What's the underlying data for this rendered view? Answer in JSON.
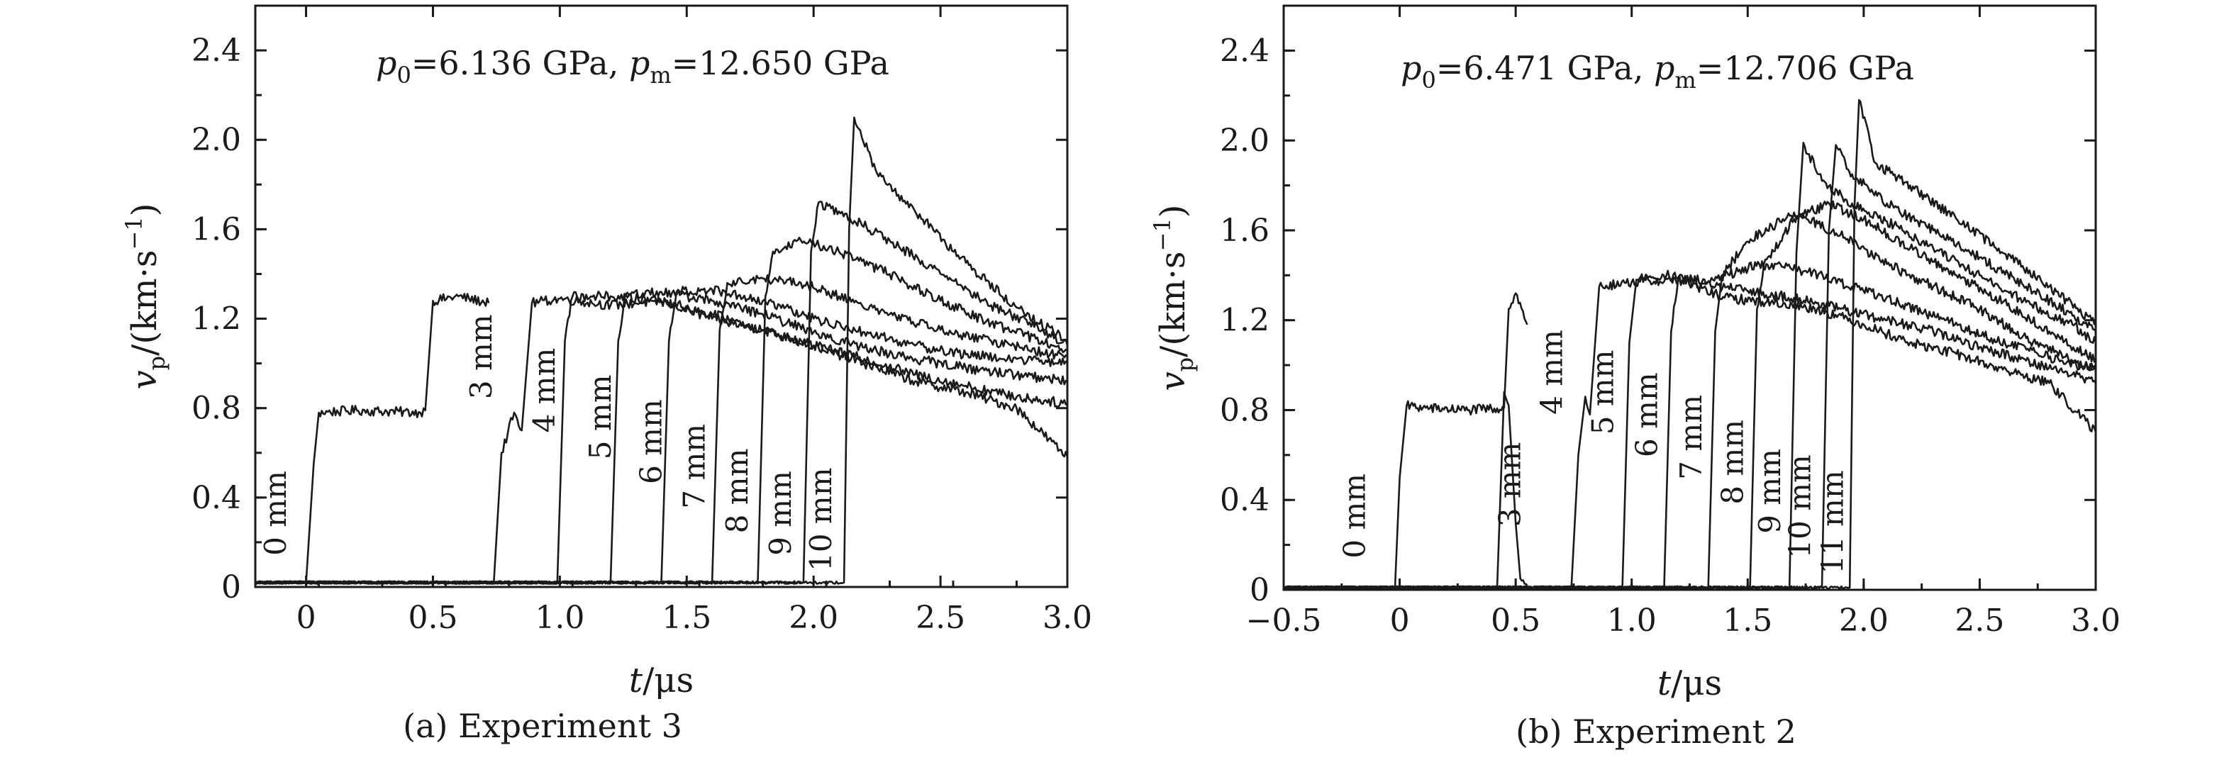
{
  "chart_data": [
    {
      "type": "line",
      "caption": "(a) Experiment 3",
      "annotation": {
        "p0_symbol": "p",
        "p0_sub": "0",
        "p0_value": "=6.136 GPa, ",
        "pm_symbol": "p",
        "pm_sub": "m",
        "pm_value": "=12.650 GPa"
      },
      "xlabel": {
        "symbol": "t",
        "unit": "/μs"
      },
      "ylabel": {
        "symbol": "v",
        "sub": "p",
        "unit_pre": "/(km·s",
        "unit_sup": "−1",
        "unit_post": ")"
      },
      "xlim": [
        -0.2,
        3.0
      ],
      "ylim": [
        0,
        2.6
      ],
      "xticks": [
        0,
        0.5,
        1.0,
        1.5,
        2.0,
        2.5,
        3.0
      ],
      "xtick_labels": [
        "0",
        "0.5",
        "1.0",
        "1.5",
        "2.0",
        "2.5",
        "3.0"
      ],
      "yticks": [
        0,
        0.4,
        0.8,
        1.2,
        1.6,
        2.0,
        2.4
      ],
      "ytick_labels": [
        "0",
        "0.4",
        "0.8",
        "1.2",
        "1.6",
        "2.0",
        "2.4"
      ],
      "grid": false,
      "series": [
        {
          "name": "0 mm",
          "x": [
            -0.2,
            0.0,
            0.03,
            0.05,
            0.2,
            0.45,
            0.47,
            0.5,
            0.6,
            0.72
          ],
          "y": [
            0.02,
            0.02,
            0.55,
            0.78,
            0.79,
            0.78,
            0.79,
            1.28,
            1.3,
            1.27
          ]
        },
        {
          "name": "3 mm",
          "x": [
            -0.2,
            0.74,
            0.77,
            0.82,
            0.85,
            0.89,
            1.0,
            1.2,
            1.4,
            1.6,
            1.8,
            2.0,
            2.2,
            2.4,
            2.6,
            2.8,
            3.0
          ],
          "y": [
            0.02,
            0.02,
            0.6,
            0.78,
            0.7,
            1.27,
            1.29,
            1.26,
            1.28,
            1.2,
            1.15,
            1.08,
            1.0,
            0.92,
            0.87,
            0.8,
            0.58
          ]
        },
        {
          "name": "4 mm",
          "x": [
            -0.2,
            0.99,
            1.02,
            1.05,
            1.2,
            1.4,
            1.6,
            1.8,
            2.0,
            2.2,
            2.4,
            2.6,
            2.8,
            3.0
          ],
          "y": [
            0.02,
            0.02,
            1.1,
            1.3,
            1.3,
            1.28,
            1.22,
            1.15,
            1.08,
            1.02,
            0.95,
            0.9,
            0.85,
            0.82
          ]
        },
        {
          "name": "5 mm",
          "x": [
            -0.2,
            1.2,
            1.23,
            1.26,
            1.4,
            1.6,
            1.8,
            2.0,
            2.2,
            2.4,
            2.6,
            2.8,
            3.0
          ],
          "y": [
            0.02,
            0.02,
            1.1,
            1.31,
            1.32,
            1.28,
            1.22,
            1.14,
            1.07,
            1.02,
            0.98,
            0.95,
            0.92
          ]
        },
        {
          "name": "6 mm",
          "x": [
            -0.2,
            1.4,
            1.43,
            1.46,
            1.6,
            1.8,
            2.0,
            2.2,
            2.4,
            2.6,
            2.8,
            3.0
          ],
          "y": [
            0.02,
            0.02,
            1.1,
            1.32,
            1.33,
            1.28,
            1.2,
            1.14,
            1.08,
            1.04,
            1.02,
            1.0
          ]
        },
        {
          "name": "7 mm",
          "x": [
            -0.2,
            1.6,
            1.63,
            1.66,
            1.8,
            1.95,
            2.1,
            2.3,
            2.5,
            2.7,
            2.9,
            3.0
          ],
          "y": [
            0.02,
            0.02,
            1.15,
            1.36,
            1.38,
            1.36,
            1.3,
            1.22,
            1.15,
            1.1,
            1.05,
            1.03
          ]
        },
        {
          "name": "8 mm",
          "x": [
            -0.2,
            1.78,
            1.81,
            1.84,
            1.95,
            2.1,
            2.3,
            2.5,
            2.7,
            2.9,
            3.0
          ],
          "y": [
            0.02,
            0.02,
            1.3,
            1.5,
            1.55,
            1.5,
            1.4,
            1.28,
            1.18,
            1.1,
            1.06
          ]
        },
        {
          "name": "9 mm",
          "x": [
            -0.2,
            1.96,
            1.99,
            2.02,
            2.1,
            2.3,
            2.5,
            2.7,
            2.9,
            3.0
          ],
          "y": [
            0.02,
            0.02,
            1.5,
            1.72,
            1.68,
            1.55,
            1.4,
            1.26,
            1.15,
            1.08
          ]
        },
        {
          "name": "10 mm",
          "x": [
            -0.2,
            2.12,
            2.14,
            2.16,
            2.25,
            2.4,
            2.6,
            2.8,
            3.0
          ],
          "y": [
            0.02,
            0.02,
            1.6,
            2.1,
            1.85,
            1.68,
            1.45,
            1.25,
            1.1
          ]
        }
      ],
      "labels": [
        {
          "text": "0 mm",
          "x": -0.08,
          "y": 0.14
        },
        {
          "text": "3 mm",
          "x": 0.73,
          "y": 0.84
        },
        {
          "text": "4 mm",
          "x": 0.98,
          "y": 0.69
        },
        {
          "text": "5 mm",
          "x": 1.2,
          "y": 0.57
        },
        {
          "text": "6 mm",
          "x": 1.4,
          "y": 0.46
        },
        {
          "text": "7 mm",
          "x": 1.57,
          "y": 0.35
        },
        {
          "text": "8 mm",
          "x": 1.74,
          "y": 0.24
        },
        {
          "text": "9 mm",
          "x": 1.91,
          "y": 0.14
        },
        {
          "text": "10 mm",
          "x": 2.07,
          "y": 0.07
        }
      ]
    },
    {
      "type": "line",
      "caption": "(b) Experiment 2",
      "annotation": {
        "p0_symbol": "p",
        "p0_sub": "0",
        "p0_value": "=6.471 GPa, ",
        "pm_symbol": "p",
        "pm_sub": "m",
        "pm_value": "=12.706 GPa"
      },
      "xlabel": {
        "symbol": "t",
        "unit": "/μs"
      },
      "ylabel": {
        "symbol": "v",
        "sub": "p",
        "unit_pre": "/(km·s",
        "unit_sup": "−1",
        "unit_post": ")"
      },
      "xlim": [
        -0.5,
        3.0
      ],
      "ylim": [
        0,
        2.6
      ],
      "xticks": [
        -0.5,
        0,
        0.5,
        1.0,
        1.5,
        2.0,
        2.5,
        3.0
      ],
      "xtick_labels": [
        "−0.5",
        "0",
        "0.5",
        "1.0",
        "1.5",
        "2.0",
        "2.5",
        "3.0"
      ],
      "yticks": [
        0,
        0.4,
        0.8,
        1.2,
        1.6,
        2.0,
        2.4
      ],
      "ytick_labels": [
        "0",
        "0.4",
        "0.8",
        "1.2",
        "1.6",
        "2.0",
        "2.4"
      ],
      "grid": false,
      "series": [
        {
          "name": "0 mm",
          "x": [
            -0.5,
            -0.02,
            0.0,
            0.03,
            0.1,
            0.3,
            0.45,
            0.47,
            0.5,
            0.55
          ],
          "y": [
            0.01,
            0.01,
            0.5,
            0.82,
            0.81,
            0.8,
            0.81,
            1.25,
            1.32,
            1.18
          ]
        },
        {
          "name": "3 mm",
          "x": [
            -0.5,
            0.42,
            0.45,
            0.47,
            0.5,
            0.52,
            0.55
          ],
          "y": [
            0.01,
            0.01,
            0.88,
            0.82,
            0.3,
            0.05,
            0.02
          ]
        },
        {
          "name": "4 mm",
          "x": [
            -0.5,
            0.74,
            0.77,
            0.8,
            0.82,
            0.86,
            1.0,
            1.2,
            1.4,
            1.6,
            1.8,
            2.0,
            2.2,
            2.4,
            2.6,
            2.8,
            3.0
          ],
          "y": [
            0.01,
            0.01,
            0.6,
            0.86,
            0.78,
            1.35,
            1.37,
            1.38,
            1.3,
            1.28,
            1.25,
            1.18,
            1.1,
            1.05,
            0.98,
            0.92,
            0.7
          ]
        },
        {
          "name": "5 mm",
          "x": [
            -0.5,
            0.96,
            0.99,
            1.02,
            1.15,
            1.3,
            1.5,
            1.7,
            1.9,
            2.1,
            2.3,
            2.5,
            2.7,
            2.9,
            3.0
          ],
          "y": [
            0.01,
            0.01,
            1.1,
            1.38,
            1.4,
            1.36,
            1.33,
            1.3,
            1.25,
            1.2,
            1.15,
            1.08,
            1.02,
            0.96,
            0.92
          ]
        },
        {
          "name": "6 mm",
          "x": [
            -0.5,
            1.14,
            1.17,
            1.2,
            1.35,
            1.55,
            1.75,
            1.95,
            2.15,
            2.35,
            2.55,
            2.75,
            3.0
          ],
          "y": [
            0.01,
            0.01,
            1.15,
            1.38,
            1.38,
            1.45,
            1.42,
            1.35,
            1.28,
            1.2,
            1.12,
            1.05,
            0.98
          ]
        },
        {
          "name": "7 mm",
          "x": [
            -0.5,
            1.33,
            1.36,
            1.39,
            1.5,
            1.7,
            1.9,
            2.1,
            2.3,
            2.5,
            2.7,
            2.9,
            3.0
          ],
          "y": [
            0.01,
            0.01,
            1.15,
            1.4,
            1.55,
            1.68,
            1.58,
            1.45,
            1.35,
            1.25,
            1.12,
            1.02,
            0.98
          ]
        },
        {
          "name": "8 mm",
          "x": [
            -0.5,
            1.51,
            1.54,
            1.57,
            1.7,
            1.85,
            2.0,
            2.2,
            2.4,
            2.6,
            2.8,
            3.0
          ],
          "y": [
            0.01,
            0.01,
            1.25,
            1.45,
            1.65,
            1.72,
            1.65,
            1.52,
            1.4,
            1.28,
            1.15,
            1.02
          ]
        },
        {
          "name": "9 mm",
          "x": [
            -0.5,
            1.68,
            1.71,
            1.74,
            1.82,
            1.95,
            2.1,
            2.3,
            2.5,
            2.7,
            2.9,
            3.0
          ],
          "y": [
            0.01,
            0.01,
            1.5,
            1.99,
            1.82,
            1.72,
            1.64,
            1.52,
            1.4,
            1.28,
            1.18,
            1.1
          ]
        },
        {
          "name": "10 mm",
          "x": [
            -0.5,
            1.82,
            1.85,
            1.88,
            1.95,
            2.1,
            2.3,
            2.5,
            2.7,
            2.9,
            3.0
          ],
          "y": [
            0.01,
            0.01,
            1.6,
            1.98,
            1.85,
            1.72,
            1.6,
            1.48,
            1.35,
            1.22,
            1.15
          ]
        },
        {
          "name": "11 mm",
          "x": [
            -0.5,
            1.94,
            1.96,
            1.98,
            2.05,
            2.2,
            2.4,
            2.6,
            2.8,
            3.0
          ],
          "y": [
            0.01,
            0.01,
            1.7,
            2.18,
            1.9,
            1.8,
            1.65,
            1.5,
            1.35,
            1.18
          ]
        }
      ],
      "labels": [
        {
          "text": "0 mm",
          "x": -0.15,
          "y": 0.14
        },
        {
          "text": "3 mm",
          "x": 0.52,
          "y": 0.28
        },
        {
          "text": "4 mm",
          "x": 0.7,
          "y": 0.78
        },
        {
          "text": "5 mm",
          "x": 0.92,
          "y": 0.69
        },
        {
          "text": "6 mm",
          "x": 1.11,
          "y": 0.59
        },
        {
          "text": "7 mm",
          "x": 1.3,
          "y": 0.49
        },
        {
          "text": "8 mm",
          "x": 1.48,
          "y": 0.38
        },
        {
          "text": "9 mm",
          "x": 1.64,
          "y": 0.25
        },
        {
          "text": "10 mm",
          "x": 1.77,
          "y": 0.14
        },
        {
          "text": "11 mm",
          "x": 1.91,
          "y": 0.07
        }
      ]
    }
  ]
}
